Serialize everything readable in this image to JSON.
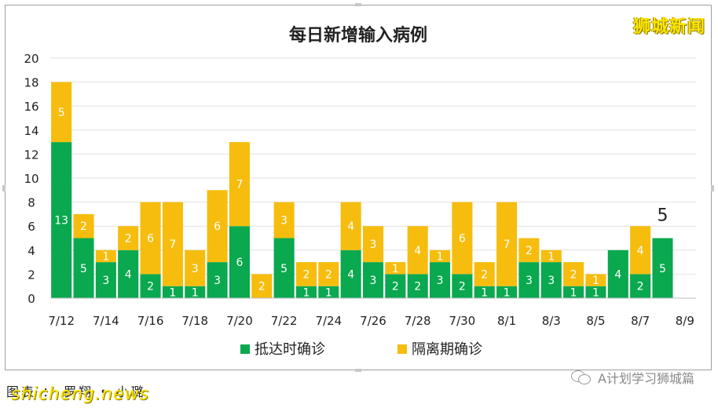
{
  "watermark_top": "狮城新闻",
  "caption": "图表 ： 罗翔 • 小璐",
  "site_mark": "shicheng.news",
  "wechat_account": "A计划学习狮城篇",
  "chart_data": {
    "type": "bar",
    "stacked": true,
    "title": "每日新增输入病例",
    "categories": [
      "7/12",
      "7/13",
      "7/14",
      "7/15",
      "7/16",
      "7/17",
      "7/18",
      "7/19",
      "7/20",
      "7/21",
      "7/22",
      "7/23",
      "7/24",
      "7/25",
      "7/26",
      "7/27",
      "7/28",
      "7/29",
      "7/30",
      "7/31",
      "8/1",
      "8/2",
      "8/3",
      "8/4",
      "8/5",
      "8/6",
      "8/7",
      "8/8",
      "8/9"
    ],
    "x_tick_labels": [
      "7/12",
      "7/14",
      "7/16",
      "7/18",
      "7/20",
      "7/22",
      "7/24",
      "7/26",
      "7/28",
      "7/30",
      "8/1",
      "8/3",
      "8/5",
      "8/7",
      "8/9"
    ],
    "series": [
      {
        "name": "抵达时确诊",
        "color": "#0aa84f",
        "values": [
          13,
          5,
          3,
          4,
          2,
          1,
          1,
          3,
          6,
          0,
          5,
          1,
          1,
          4,
          3,
          2,
          2,
          3,
          2,
          1,
          1,
          3,
          3,
          1,
          1,
          4,
          2,
          5,
          0
        ]
      },
      {
        "name": "隔离期确诊",
        "color": "#f6bd0f",
        "values": [
          5,
          2,
          1,
          2,
          6,
          7,
          3,
          6,
          7,
          2,
          3,
          2,
          2,
          4,
          3,
          1,
          4,
          1,
          6,
          2,
          7,
          2,
          1,
          2,
          1,
          0,
          4,
          0,
          0
        ]
      }
    ],
    "ylim": [
      0,
      20
    ],
    "y_ticks": [
      0,
      2,
      4,
      6,
      8,
      10,
      12,
      14,
      16,
      18,
      20
    ],
    "grid": true,
    "legend_position": "bottom",
    "annotations": [
      {
        "category": "8/8",
        "text": "5"
      }
    ]
  }
}
